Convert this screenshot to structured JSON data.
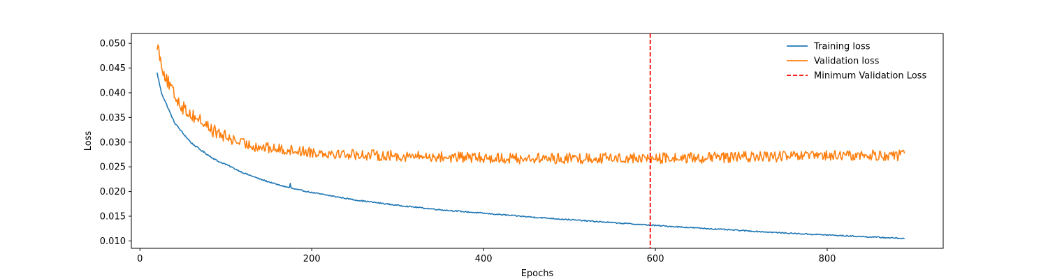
{
  "chart_data": {
    "type": "line",
    "title": "",
    "xlabel": "Epochs",
    "ylabel": "Loss",
    "xlim": [
      -10,
      935
    ],
    "ylim": [
      0.0085,
      0.052
    ],
    "xticks": [
      0,
      200,
      400,
      600,
      800
    ],
    "yticks": [
      0.01,
      0.015,
      0.02,
      0.025,
      0.03,
      0.035,
      0.04,
      0.045,
      0.05
    ],
    "xtick_labels": [
      "0",
      "200",
      "400",
      "600",
      "800"
    ],
    "ytick_labels": [
      "0.010",
      "0.015",
      "0.020",
      "0.025",
      "0.030",
      "0.035",
      "0.040",
      "0.045",
      "0.050"
    ],
    "grid": false,
    "legend_position": "top-right",
    "series": [
      {
        "name": "Training loss",
        "color": "#1f77b4",
        "style": "solid",
        "x": [
          20,
          25,
          30,
          40,
          50,
          60,
          70,
          80,
          90,
          100,
          120,
          140,
          160,
          180,
          200,
          250,
          300,
          350,
          400,
          450,
          500,
          550,
          593,
          650,
          700,
          750,
          800,
          850,
          890
        ],
        "values": [
          0.044,
          0.04,
          0.038,
          0.034,
          0.0318,
          0.0298,
          0.0285,
          0.0273,
          0.0262,
          0.0255,
          0.0238,
          0.0225,
          0.0214,
          0.0205,
          0.0198,
          0.0183,
          0.0172,
          0.0163,
          0.0156,
          0.0149,
          0.0143,
          0.0137,
          0.0132,
          0.0126,
          0.0121,
          0.0116,
          0.0112,
          0.0108,
          0.0105
        ]
      },
      {
        "name": "Validation loss",
        "color": "#ff7f0e",
        "style": "solid",
        "x": [
          20,
          25,
          30,
          40,
          50,
          60,
          70,
          80,
          90,
          100,
          120,
          140,
          160,
          180,
          200,
          250,
          300,
          350,
          400,
          450,
          500,
          550,
          593,
          650,
          700,
          750,
          800,
          850,
          890
        ],
        "values": [
          0.05,
          0.046,
          0.043,
          0.0395,
          0.037,
          0.0355,
          0.0345,
          0.033,
          0.0318,
          0.031,
          0.0297,
          0.029,
          0.0286,
          0.0283,
          0.028,
          0.0275,
          0.0272,
          0.027,
          0.0268,
          0.0267,
          0.0267,
          0.0268,
          0.0267,
          0.0268,
          0.027,
          0.0271,
          0.0272,
          0.0273,
          0.0273
        ]
      },
      {
        "name": "Minimum Validation Loss",
        "color": "#ff0000",
        "style": "dashed",
        "type": "vline",
        "x_value": 594
      }
    ]
  }
}
